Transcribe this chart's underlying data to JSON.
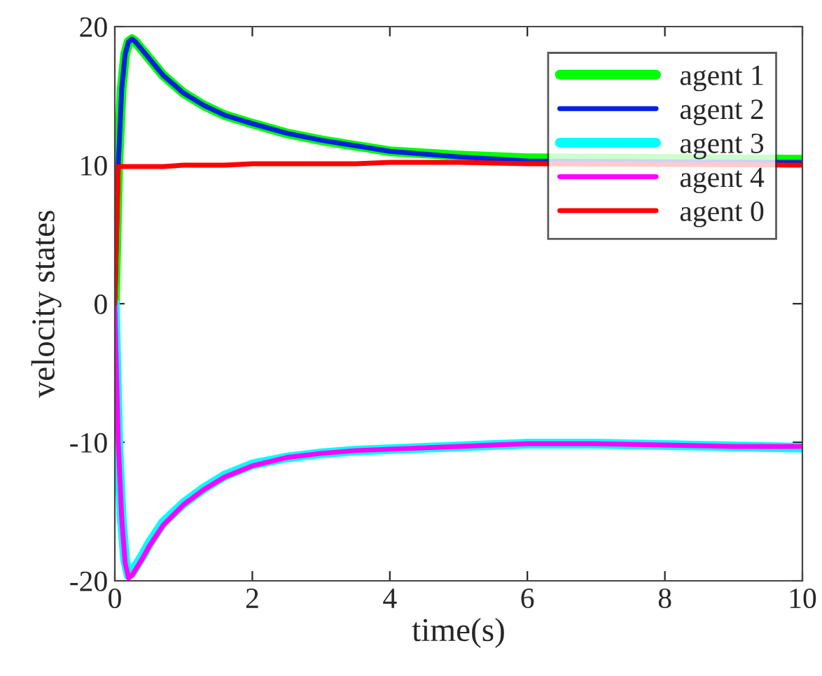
{
  "chart_data": {
    "type": "line",
    "xlabel": "time(s)",
    "ylabel": "velocity states",
    "xlim": [
      0,
      10
    ],
    "ylim": [
      -20,
      20
    ],
    "xticks": [
      0,
      2,
      4,
      6,
      8,
      10
    ],
    "yticks": [
      -20,
      -10,
      0,
      10,
      20
    ],
    "grid": false,
    "legend": "top right",
    "line_style": "solid",
    "marker": "none",
    "x": [
      0,
      0.05,
      0.1,
      0.15,
      0.2,
      0.25,
      0.3,
      0.4,
      0.5,
      0.7,
      1,
      1.3,
      1.6,
      2,
      2.5,
      3,
      3.5,
      4,
      5,
      6,
      7,
      8,
      9,
      10
    ],
    "series": [
      {
        "name": "agent 1",
        "color": "#00ff00",
        "values": [
          0,
          10,
          15.5,
          18,
          18.9,
          19.1,
          18.9,
          18.3,
          17.7,
          16.5,
          15.2,
          14.3,
          13.6,
          13.0,
          12.3,
          11.8,
          11.4,
          11.0,
          10.7,
          10.5,
          null,
          null,
          null,
          10.4
        ]
      },
      {
        "name": "agent 2",
        "color": "#0022dd",
        "values": [
          0,
          10,
          15.5,
          18,
          18.9,
          19.1,
          18.9,
          18.3,
          17.7,
          16.5,
          15.2,
          14.3,
          13.6,
          13.0,
          12.3,
          11.8,
          11.4,
          11.0,
          10.6,
          10.3,
          null,
          null,
          null,
          10.2
        ]
      },
      {
        "name": "agent 3",
        "color": "#00ffff",
        "values": [
          0,
          -10,
          -15.5,
          -18.5,
          -19.6,
          -19.4,
          -19.0,
          -18.2,
          -17.3,
          -15.8,
          -14.4,
          -13.3,
          -12.4,
          -11.6,
          -11.1,
          -10.8,
          -10.6,
          -10.5,
          -10.3,
          -10.1,
          -10.1,
          -10.2,
          -10.3,
          -10.4
        ]
      },
      {
        "name": "agent 4",
        "color": "#ff00ff",
        "values": [
          0,
          -10,
          -15.5,
          -18.7,
          -19.8,
          -19.6,
          -19.2,
          -18.4,
          -17.5,
          -16.0,
          -14.5,
          -13.4,
          -12.5,
          -11.7,
          -11.1,
          -10.8,
          -10.6,
          -10.5,
          -10.3,
          -10.1,
          -10.1,
          -10.2,
          -10.3,
          -10.3
        ]
      },
      {
        "name": "agent 0",
        "color": "#ff0000",
        "values": [
          0,
          9.9,
          9.9,
          9.9,
          9.9,
          9.9,
          9.9,
          9.9,
          9.9,
          9.9,
          10,
          10,
          10,
          10.1,
          10.1,
          10.1,
          10.1,
          10.2,
          10.2,
          10.1,
          null,
          null,
          null,
          10
        ]
      }
    ]
  }
}
